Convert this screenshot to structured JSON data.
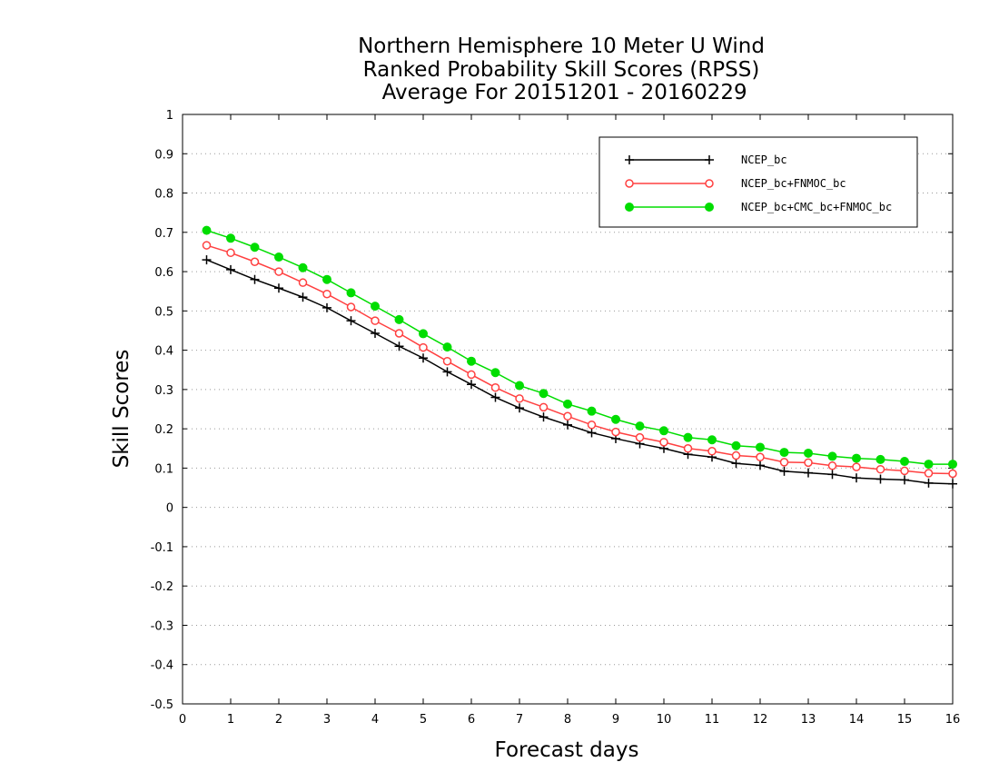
{
  "chart_data": {
    "type": "line",
    "title": [
      "Northern Hemisphere 10 Meter U Wind",
      "Ranked Probability Skill Scores (RPSS)",
      " Average For 20151201 - 20160229"
    ],
    "xlabel": "Forecast days",
    "ylabel": "Skill Scores",
    "xlim": [
      0,
      16
    ],
    "ylim": [
      -0.5,
      1
    ],
    "xticks": [
      0,
      1,
      2,
      3,
      4,
      5,
      6,
      7,
      8,
      9,
      10,
      11,
      12,
      13,
      14,
      15,
      16
    ],
    "xtick_labels": [
      "0",
      "1",
      "2",
      "3",
      "4",
      "5",
      "6",
      "7",
      "8",
      "9",
      "10",
      "11",
      "12",
      "13",
      "14",
      "15",
      "16"
    ],
    "yticks": [
      -0.5,
      -0.4,
      -0.3,
      -0.2,
      -0.1,
      0,
      0.1,
      0.2,
      0.3,
      0.4,
      0.5,
      0.6,
      0.7,
      0.8,
      0.9,
      1
    ],
    "ytick_labels": [
      "-0.5",
      "-0.4",
      "-0.3",
      "-0.2",
      "-0.1",
      "0",
      "0.1",
      "0.2",
      "0.3",
      "0.4",
      "0.5",
      "0.6",
      "0.7",
      "0.8",
      "0.9",
      "1"
    ],
    "grid": "horizontal-dotted",
    "legend_position": "top-right",
    "x": [
      0.5,
      1,
      1.5,
      2,
      2.5,
      3,
      3.5,
      4,
      4.5,
      5,
      5.5,
      6,
      6.5,
      7,
      7.5,
      8,
      8.5,
      9,
      9.5,
      10,
      10.5,
      11,
      11.5,
      12,
      12.5,
      13,
      13.5,
      14,
      14.5,
      15,
      15.5,
      16
    ],
    "series": [
      {
        "name": "NCEP_bc",
        "color": "#000000",
        "marker": "plus",
        "values": [
          0.63,
          0.605,
          0.58,
          0.558,
          0.535,
          0.508,
          0.475,
          0.443,
          0.41,
          0.38,
          0.345,
          0.313,
          0.28,
          0.253,
          0.23,
          0.21,
          0.19,
          0.175,
          0.162,
          0.15,
          0.135,
          0.128,
          0.112,
          0.107,
          0.092,
          0.088,
          0.084,
          0.075,
          0.072,
          0.07,
          0.062,
          0.06
        ]
      },
      {
        "name": "NCEP_bc+FNMOC_bc",
        "color": "#ff4040",
        "marker": "open-circle",
        "values": [
          0.667,
          0.648,
          0.625,
          0.6,
          0.572,
          0.543,
          0.51,
          0.475,
          0.443,
          0.407,
          0.372,
          0.338,
          0.305,
          0.277,
          0.255,
          0.232,
          0.21,
          0.192,
          0.178,
          0.166,
          0.15,
          0.143,
          0.132,
          0.128,
          0.115,
          0.114,
          0.106,
          0.103,
          0.097,
          0.093,
          0.087,
          0.086
        ]
      },
      {
        "name": "NCEP_bc+CMC_bc+FNMOC_bc",
        "color": "#00dd00",
        "marker": "filled-circle",
        "values": [
          0.705,
          0.685,
          0.662,
          0.637,
          0.61,
          0.58,
          0.546,
          0.512,
          0.478,
          0.442,
          0.408,
          0.372,
          0.343,
          0.31,
          0.29,
          0.263,
          0.245,
          0.224,
          0.207,
          0.195,
          0.178,
          0.172,
          0.157,
          0.153,
          0.14,
          0.138,
          0.13,
          0.125,
          0.122,
          0.117,
          0.11,
          0.11
        ]
      }
    ]
  }
}
